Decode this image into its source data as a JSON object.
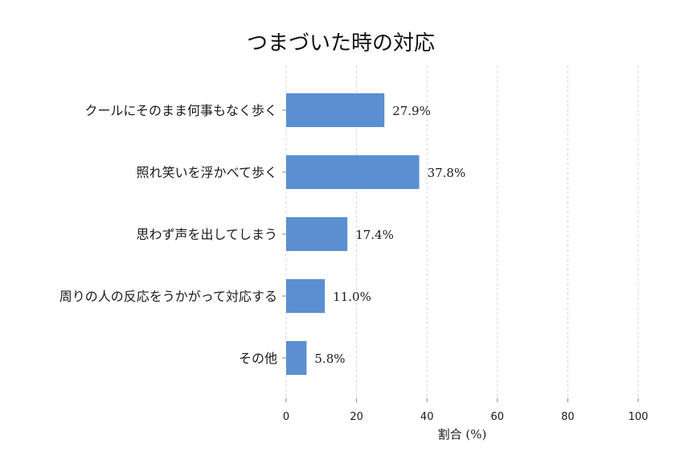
{
  "chart_data": {
    "type": "bar",
    "orientation": "horizontal",
    "title": "つまづいた時の対応",
    "categories": [
      "クールにそのまま何事もなく歩く",
      "照れ笑いを浮かべて歩く",
      "思わず声を出してしまう",
      "周りの人の反応をうかがって対応する",
      "その他"
    ],
    "values": [
      27.9,
      37.8,
      17.4,
      11.0,
      5.8
    ],
    "value_labels": [
      "27.9%",
      "37.8%",
      "17.4%",
      "11.0%",
      "5.8%"
    ],
    "xlabel": "割合 (%)",
    "ylabel": "",
    "xlim": [
      0,
      100
    ],
    "xticks": [
      0,
      20,
      40,
      60,
      80,
      100
    ],
    "xtick_labels": [
      "0",
      "20",
      "40",
      "60",
      "80",
      "100"
    ],
    "grid": true,
    "bar_color": "#5b8fd1"
  }
}
